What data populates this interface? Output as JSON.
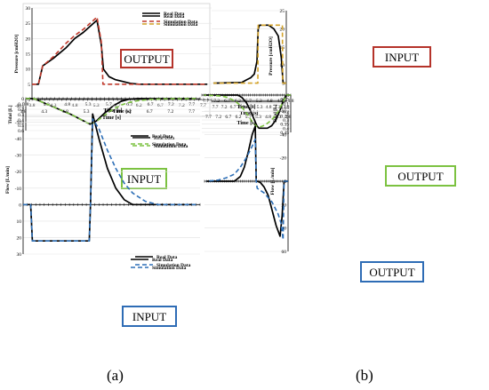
{
  "captions": [
    "(a)",
    "(b)"
  ],
  "colors": {
    "real": "#000000",
    "sim_red": "#c0392b",
    "sim_green": "#7cc241",
    "sim_orange": "#d4a32a",
    "sim_blue": "#2d6fb7",
    "box_red": "#b5332a",
    "box_green": "#7cc241",
    "box_blue": "#2e6cb5"
  },
  "chart_data": [
    {
      "id": "a1",
      "type": "line",
      "panel": "(a)",
      "xlabel": "Time [s]",
      "ylabel": "Pressure [cmH2O]",
      "xticks": [
        "3.8",
        "4.3",
        "4.8",
        "5.3",
        "5.7",
        "6.2",
        "6.7",
        "7.2",
        "7.7"
      ],
      "xlim": [
        3.8,
        8.0
      ],
      "ylim": [
        0,
        30
      ],
      "yticks": [
        0,
        5,
        10,
        15,
        20,
        25,
        30
      ],
      "legend": [
        "Real Data",
        "Simulation Data"
      ],
      "legend_position": "top-right",
      "annotation": "OUTPUT",
      "series": [
        {
          "name": "Real Data",
          "style": "solid",
          "color": "real",
          "x": [
            3.8,
            3.95,
            4.05,
            4.3,
            4.6,
            4.8,
            5.0,
            5.2,
            5.32,
            5.42,
            5.47,
            5.6,
            5.75,
            5.9,
            6.1,
            6.3,
            7.0,
            7.9
          ],
          "y": [
            5,
            5,
            11,
            13.5,
            17,
            20,
            22,
            24.5,
            26,
            18,
            10,
            7.5,
            6.5,
            6,
            5.3,
            5,
            5,
            5
          ]
        },
        {
          "name": "Simulation Data",
          "style": "dashed",
          "color": "sim_red",
          "x": [
            3.8,
            3.95,
            4.05,
            4.3,
            4.6,
            4.8,
            5.0,
            5.2,
            5.32,
            5.42,
            5.46,
            5.55,
            6.0,
            7.9
          ],
          "y": [
            5,
            5,
            11,
            14,
            18.5,
            21,
            23,
            25.5,
            27,
            19,
            5,
            5,
            5,
            5
          ]
        }
      ]
    },
    {
      "id": "b1",
      "type": "line",
      "panel": "(b)",
      "xlabel": "Time [s]",
      "ylabel": "Pressure [cmH2O]",
      "xticks": [
        "3.8",
        "4.3",
        "4.8",
        "5.3",
        "5.7",
        "6.2",
        "6.7",
        "7.2",
        "7.7"
      ],
      "xlim": [
        3.8,
        8.0
      ],
      "ylim": [
        0,
        25
      ],
      "yticks": [
        0,
        5,
        10,
        15,
        20,
        25
      ],
      "legend": [
        "Real Data",
        "Simulation Data"
      ],
      "legend_position": "top-right",
      "annotation": "INPUT",
      "series": [
        {
          "name": "Real Data",
          "style": "solid",
          "color": "real",
          "x": [
            3.8,
            3.98,
            4.08,
            4.25,
            4.5,
            4.8,
            5.0,
            5.3,
            5.38,
            5.45,
            5.6,
            5.8,
            6.0,
            6.3,
            7.9
          ],
          "y": [
            5,
            5,
            12,
            18,
            20,
            21,
            21,
            21,
            20,
            11,
            7.5,
            6.5,
            6,
            5.2,
            5
          ]
        },
        {
          "name": "Simulation Data",
          "style": "dashed",
          "color": "sim_orange",
          "x": [
            3.8,
            4.0,
            4.02,
            5.38,
            5.4,
            7.9
          ],
          "y": [
            5,
            5,
            21,
            21,
            5,
            5
          ]
        }
      ]
    },
    {
      "id": "a2",
      "type": "line",
      "panel": "(a)",
      "xlabel": "Time [s]",
      "ylabel": "Tidal [L]",
      "xticks": [
        "3.8",
        "4.3",
        "4.8",
        "5.3",
        "5.7",
        "6.2",
        "6.7",
        "7.2",
        "7.7"
      ],
      "xlim": [
        3.8,
        8.0
      ],
      "ylim": [
        0,
        0.6
      ],
      "yticks": [
        0,
        0.1,
        0.2,
        0.3,
        0.4,
        0.5,
        0.6
      ],
      "legend": [
        "Real Data",
        "Simulation Data"
      ],
      "legend_position": "top-right",
      "annotation": "INPUT",
      "series": [
        {
          "name": "Real Data",
          "style": "solid",
          "color": "real",
          "x": [
            3.8,
            4.0,
            4.3,
            4.6,
            4.9,
            5.2,
            5.35,
            5.5,
            5.7,
            5.9,
            6.1,
            6.3,
            6.5,
            7.9
          ],
          "y": [
            0,
            0,
            0.1,
            0.2,
            0.3,
            0.42,
            0.48,
            0.42,
            0.27,
            0.14,
            0.05,
            0.01,
            0,
            0
          ]
        },
        {
          "name": "Simulation Data",
          "style": "dashed",
          "color": "sim_green",
          "x": [
            3.8,
            4.0,
            4.3,
            4.6,
            4.9,
            5.2,
            5.35,
            5.5,
            5.7,
            5.9,
            6.1,
            6.3,
            6.5,
            6.8,
            7.1,
            7.9
          ],
          "y": [
            0,
            0,
            0.1,
            0.2,
            0.3,
            0.42,
            0.48,
            0.43,
            0.31,
            0.2,
            0.12,
            0.07,
            0.04,
            0.015,
            0.005,
            0
          ]
        }
      ]
    },
    {
      "id": "b2",
      "type": "line",
      "panel": "(b)",
      "xlabel": "Time [s]",
      "ylabel": "Tidal [L]",
      "xticks": [
        "3.8",
        "4.3",
        "4.8",
        "5.3",
        "5.7",
        "6.2",
        "6.7",
        "7.2",
        "7.7"
      ],
      "xlim": [
        3.8,
        8.0
      ],
      "ylim": [
        0,
        0.45
      ],
      "yticks": [
        0,
        0.05,
        0.1,
        0.15,
        0.2,
        0.25,
        0.3,
        0.35,
        0.4,
        0.45
      ],
      "legend": [
        "Real Data",
        "Simulation Data"
      ],
      "legend_position": "top-right",
      "annotation": "OUTPUT",
      "series": [
        {
          "name": "Real Data",
          "style": "solid",
          "color": "real",
          "x": [
            3.8,
            4.0,
            4.15,
            4.3,
            4.5,
            4.7,
            4.9,
            5.1,
            5.3,
            5.4,
            5.55,
            5.7,
            5.9,
            6.1,
            6.3,
            7.9
          ],
          "y": [
            0,
            0,
            0.06,
            0.18,
            0.3,
            0.37,
            0.4,
            0.4,
            0.4,
            0.37,
            0.28,
            0.19,
            0.09,
            0.03,
            0,
            0
          ]
        },
        {
          "name": "Simulation Data",
          "style": "dashed",
          "color": "sim_green",
          "x": [
            3.8,
            4.0,
            4.2,
            4.4,
            4.6,
            4.8,
            5.0,
            5.2,
            5.4,
            5.6,
            5.8,
            6.0,
            6.2,
            6.4,
            6.6,
            6.9,
            7.2,
            7.9
          ],
          "y": [
            0,
            0,
            0.1,
            0.2,
            0.27,
            0.32,
            0.36,
            0.38,
            0.38,
            0.33,
            0.25,
            0.18,
            0.12,
            0.08,
            0.05,
            0.02,
            0.01,
            0
          ]
        }
      ]
    },
    {
      "id": "a3",
      "type": "line",
      "panel": "(a)",
      "xlabel": "Time [s]",
      "ylabel": "Flow [L/min]",
      "xticks": [
        "3.8",
        "4.3",
        "4.8",
        "5.3",
        "5.7",
        "6.2",
        "6.7",
        "7.2",
        "7.7"
      ],
      "xlim": [
        3.8,
        8.0
      ],
      "ylim": [
        -60,
        30
      ],
      "yticks": [
        -60,
        -50,
        -40,
        -30,
        -20,
        -10,
        0,
        10,
        20,
        30
      ],
      "legend": [
        "Real Data",
        "Simulation Data"
      ],
      "legend_position": "top-right",
      "annotation": "INPUT",
      "series": [
        {
          "name": "Real Data",
          "style": "solid",
          "color": "real",
          "x": [
            3.8,
            3.98,
            4.02,
            5.37,
            5.4,
            5.45,
            5.6,
            5.8,
            6.0,
            6.2,
            6.4,
            7.9
          ],
          "y": [
            0,
            0,
            22,
            22,
            0,
            -55,
            -40,
            -22,
            -10,
            -3,
            0,
            0
          ]
        },
        {
          "name": "Simulation Data",
          "style": "dashed",
          "color": "sim_blue",
          "x": [
            3.8,
            3.98,
            4.02,
            5.37,
            5.4,
            5.45,
            5.6,
            5.8,
            6.0,
            6.2,
            6.4,
            6.7,
            7.0,
            7.9
          ],
          "y": [
            0,
            0,
            22,
            22,
            0,
            -52,
            -46,
            -33,
            -22,
            -13,
            -7,
            -2,
            0,
            0
          ]
        }
      ]
    },
    {
      "id": "b3",
      "type": "line",
      "panel": "(b)",
      "xlabel": "Time [s]",
      "ylabel": "Flow [L/min]",
      "xticks": [
        "3.8",
        "4.3",
        "4.8",
        "5.3",
        "5.7",
        "6.2",
        "6.7",
        "7.2",
        "7.7"
      ],
      "xlim": [
        3.8,
        8.0
      ],
      "ylim": [
        -60,
        60
      ],
      "yticks": [
        -60,
        -40,
        -20,
        0,
        20,
        40,
        60
      ],
      "legend": [
        "Real Data",
        "Simulation Data"
      ],
      "legend_position": "top-right",
      "annotation": "OUTPUT",
      "series": [
        {
          "name": "Real Data",
          "style": "solid",
          "color": "real",
          "x": [
            3.8,
            4.0,
            4.1,
            4.2,
            4.4,
            4.6,
            4.8,
            5.0,
            5.2,
            5.35,
            5.4,
            5.45,
            5.6,
            5.8,
            6.0,
            6.2,
            6.5,
            7.9
          ],
          "y": [
            0,
            0,
            30,
            47,
            38,
            25,
            12,
            5,
            1,
            0,
            0,
            -47,
            -40,
            -25,
            -12,
            -4,
            0,
            0
          ]
        },
        {
          "name": "Simulation Data",
          "style": "dashed",
          "color": "sim_blue",
          "x": [
            3.8,
            4.0,
            4.05,
            4.15,
            4.3,
            4.6,
            5.0,
            5.35,
            5.4,
            5.45,
            5.6,
            5.9,
            6.2,
            6.5,
            6.9,
            7.3,
            7.9
          ],
          "y": [
            0,
            0,
            50,
            36,
            28,
            18,
            10,
            6,
            0,
            -36,
            -30,
            -20,
            -12,
            -6,
            -3,
            -1,
            0
          ]
        }
      ]
    }
  ]
}
